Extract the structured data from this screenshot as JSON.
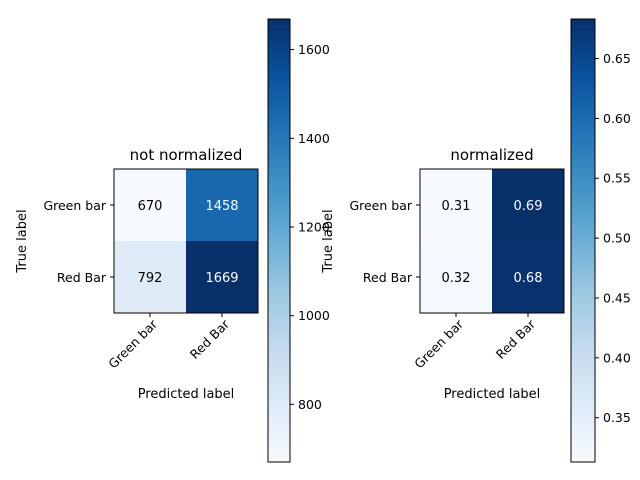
{
  "chart_data": [
    {
      "type": "heatmap",
      "title": "not normalized",
      "xlabel": "Predicted label",
      "ylabel": "True label",
      "x_categories": [
        "Green bar",
        "Red Bar"
      ],
      "y_categories": [
        "Green bar",
        "Red Bar"
      ],
      "values": [
        [
          670,
          1458
        ],
        [
          792,
          1669
        ]
      ],
      "cell_labels": [
        [
          "670",
          "1458"
        ],
        [
          "792",
          "1669"
        ]
      ],
      "colormap": "Blues",
      "colorbar": {
        "range": [
          670,
          1669
        ],
        "ticks": [
          800,
          1000,
          1200,
          1400,
          1600
        ],
        "tick_labels": [
          "800",
          "1000",
          "1200",
          "1400",
          "1600"
        ]
      }
    },
    {
      "type": "heatmap",
      "title": "normalized",
      "xlabel": "Predicted label",
      "ylabel": "True label",
      "x_categories": [
        "Green bar",
        "Red Bar"
      ],
      "y_categories": [
        "Green bar",
        "Red Bar"
      ],
      "values": [
        [
          0.31,
          0.69
        ],
        [
          0.32,
          0.68
        ]
      ],
      "cell_labels": [
        [
          "0.31",
          "0.69"
        ],
        [
          "0.32",
          "0.68"
        ]
      ],
      "colormap": "Blues",
      "colorbar": {
        "range": [
          0.313,
          0.683
        ],
        "ticks": [
          0.35,
          0.4,
          0.45,
          0.5,
          0.55,
          0.6,
          0.65
        ],
        "tick_labels": [
          "0.35",
          "0.40",
          "0.45",
          "0.50",
          "0.55",
          "0.60",
          "0.65"
        ]
      }
    }
  ]
}
